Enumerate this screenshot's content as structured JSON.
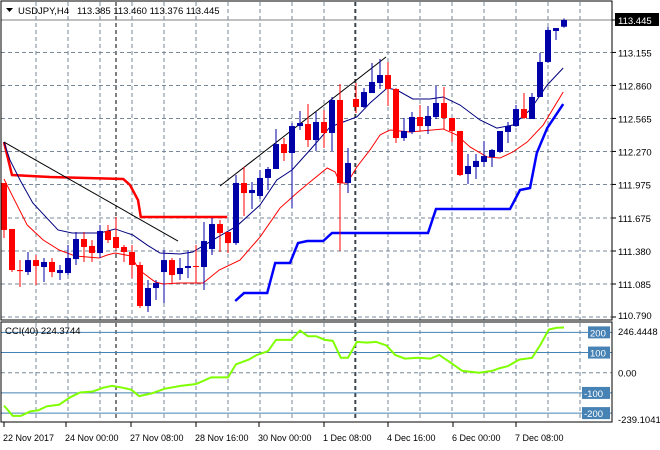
{
  "header": {
    "symbol": "USDJPY,H4",
    "ohlc": "113.385 113.460 113.376 113.445",
    "collapse_icon": "triangle-down-icon"
  },
  "colors": {
    "bull": "#0000a8",
    "bear": "#ff0000",
    "ma_slow": "#000080",
    "ma_fast": "#ff0000",
    "step_red": "#ff0000",
    "step_blue": "#0000ff",
    "trendline": "#000000",
    "cci": "#80ff00",
    "cci_levels": "#4682b4",
    "grid": "#778899"
  },
  "chart_data": [
    {
      "type": "candlestick",
      "title": "USDJPY,H4",
      "current_price": "113.445",
      "ylim": [
        110.79,
        113.445
      ],
      "price_ticks": [
        "113.445",
        "113.155",
        "112.860",
        "112.565",
        "112.270",
        "111.975",
        "111.675",
        "111.380",
        "111.085",
        "110.790"
      ],
      "x_labels": [
        "22 Nov 2017",
        "24 Nov 00:00",
        "27 Nov 08:00",
        "28 Nov 16:00",
        "30 Nov 00:00",
        "1 Dec 08:00",
        "4 Dec 16:00",
        "6 Dec 00:00",
        "7 Dec 08:00"
      ],
      "candles_ohlc": [
        [
          111.988,
          111.988,
          111.496,
          111.568
        ],
        [
          111.577,
          111.577,
          111.192,
          111.21
        ],
        [
          111.21,
          111.299,
          111.058,
          111.2
        ],
        [
          111.192,
          111.371,
          111.165,
          111.299
        ],
        [
          111.299,
          111.344,
          111.076,
          111.246
        ],
        [
          111.237,
          111.317,
          111.103,
          111.282
        ],
        [
          111.282,
          111.317,
          111.147,
          111.192
        ],
        [
          111.183,
          111.255,
          111.121,
          111.21
        ],
        [
          111.183,
          111.434,
          111.165,
          111.317
        ],
        [
          111.308,
          111.55,
          111.255,
          111.487
        ],
        [
          111.487,
          111.55,
          111.282,
          111.416
        ],
        [
          111.425,
          111.478,
          111.282,
          111.362
        ],
        [
          111.362,
          111.612,
          111.317,
          111.559
        ],
        [
          111.559,
          111.612,
          111.451,
          111.478
        ],
        [
          111.505,
          111.684,
          111.389,
          111.407
        ],
        [
          111.416,
          111.434,
          111.282,
          111.371
        ],
        [
          111.371,
          111.434,
          111.138,
          111.255
        ],
        [
          111.255,
          111.282,
          110.87,
          110.888
        ],
        [
          110.888,
          111.121,
          110.835,
          111.049
        ],
        [
          111.049,
          111.121,
          110.942,
          111.094
        ],
        [
          111.192,
          111.389,
          110.915,
          111.299
        ],
        [
          111.299,
          111.317,
          111.094,
          111.165
        ],
        [
          111.174,
          111.317,
          111.121,
          111.228
        ],
        [
          111.228,
          111.389,
          111.138,
          111.246
        ],
        [
          111.246,
          111.434,
          111.094,
          111.24
        ],
        [
          111.237,
          111.639,
          111.031,
          111.469
        ],
        [
          111.398,
          111.675,
          111.344,
          111.621
        ],
        [
          111.621,
          111.657,
          111.371,
          111.541
        ],
        [
          111.55,
          111.55,
          111.362,
          111.451
        ],
        [
          111.451,
          112.059,
          111.434,
          111.988
        ],
        [
          111.988,
          112.131,
          111.693,
          111.898
        ],
        [
          111.898,
          111.997,
          111.755,
          111.925
        ],
        [
          111.872,
          112.104,
          111.845,
          112.033
        ],
        [
          112.033,
          112.131,
          111.925,
          112.113
        ],
        [
          112.113,
          112.471,
          112.113,
          112.336
        ],
        [
          112.336,
          112.39,
          112.185,
          112.256
        ],
        [
          112.256,
          112.524,
          111.764,
          112.497
        ],
        [
          112.497,
          112.631,
          112.462,
          112.524
        ],
        [
          112.515,
          112.694,
          112.31,
          112.372
        ],
        [
          112.372,
          112.623,
          112.274,
          112.533
        ],
        [
          112.533,
          112.64,
          112.301,
          112.435
        ],
        [
          112.435,
          112.757,
          112.274,
          112.73
        ],
        [
          112.73,
          112.873,
          111.38,
          111.988
        ],
        [
          111.988,
          112.301,
          111.898,
          112.167
        ],
        [
          112.739,
          112.882,
          112.614,
          112.667
        ],
        [
          112.667,
          112.837,
          112.658,
          112.801
        ],
        [
          112.792,
          113.061,
          112.792,
          112.891
        ],
        [
          112.882,
          113.096,
          112.828,
          112.953
        ],
        [
          112.953,
          113.07,
          112.676,
          112.828
        ],
        [
          112.828,
          112.837,
          112.345,
          112.39
        ],
        [
          112.39,
          112.569,
          112.363,
          112.453
        ],
        [
          112.444,
          112.623,
          112.426,
          112.578
        ],
        [
          112.578,
          112.685,
          112.453,
          112.497
        ],
        [
          112.497,
          112.676,
          112.426,
          112.587
        ],
        [
          112.578,
          112.855,
          112.56,
          112.703
        ],
        [
          112.703,
          112.846,
          112.471,
          112.569
        ],
        [
          112.569,
          112.569,
          112.354,
          112.453
        ],
        [
          112.453,
          112.453,
          112.05,
          112.059
        ],
        [
          112.068,
          112.247,
          111.979,
          112.14
        ],
        [
          112.131,
          112.247,
          112.024,
          112.185
        ],
        [
          112.176,
          112.363,
          112.131,
          112.229
        ],
        [
          112.22,
          112.292,
          112.131,
          112.283
        ],
        [
          112.265,
          112.453,
          112.256,
          112.453
        ],
        [
          112.444,
          112.533,
          112.345,
          112.497
        ],
        [
          112.497,
          112.685,
          112.488,
          112.649
        ],
        [
          112.649,
          112.792,
          112.56,
          112.569
        ],
        [
          112.56,
          112.792,
          112.56,
          112.757
        ],
        [
          112.757,
          113.15,
          112.757,
          113.07
        ],
        [
          113.07,
          113.382,
          113.061,
          113.356
        ],
        [
          113.347,
          113.373,
          113.266,
          113.373
        ],
        [
          113.385,
          113.46,
          113.376,
          113.445
        ]
      ],
      "overlays": {
        "ma_slow": [
          [
            0,
            112.354
          ],
          [
            0.75,
            112.193
          ],
          [
            2,
            112.015
          ],
          [
            3.6,
            111.809
          ],
          [
            6.75,
            111.568
          ],
          [
            8.5,
            111.541
          ],
          [
            12,
            111.541
          ],
          [
            13.9,
            111.577
          ],
          [
            16.1,
            111.523
          ],
          [
            17.9,
            111.433
          ],
          [
            19.5,
            111.362
          ],
          [
            22,
            111.353
          ],
          [
            23.6,
            111.371
          ],
          [
            26.1,
            111.478
          ],
          [
            29.1,
            111.603
          ],
          [
            32,
            111.791
          ],
          [
            34.1,
            112.015
          ],
          [
            36,
            112.104
          ],
          [
            38.25,
            112.283
          ],
          [
            40.75,
            112.488
          ],
          [
            42.4,
            112.533
          ],
          [
            44.1,
            112.578
          ],
          [
            45.75,
            112.703
          ],
          [
            47.9,
            112.837
          ],
          [
            49.1,
            112.819
          ],
          [
            51.1,
            112.739
          ],
          [
            53.25,
            112.739
          ],
          [
            54.9,
            112.757
          ],
          [
            57,
            112.685
          ],
          [
            59.5,
            112.551
          ],
          [
            61.6,
            112.479
          ],
          [
            63.6,
            112.506
          ],
          [
            65.75,
            112.64
          ],
          [
            67.9,
            112.864
          ],
          [
            69.9,
            113.016
          ]
        ],
        "ma_fast": [
          [
            0,
            112.024
          ],
          [
            1,
            111.88
          ],
          [
            2.9,
            111.612
          ],
          [
            4.9,
            111.478
          ],
          [
            6.9,
            111.389
          ],
          [
            8.9,
            111.335
          ],
          [
            11.9,
            111.317
          ],
          [
            12.9,
            111.344
          ],
          [
            13.9,
            111.362
          ],
          [
            15.9,
            111.335
          ],
          [
            16.9,
            111.21
          ],
          [
            18.9,
            111.103
          ],
          [
            19.9,
            111.085
          ],
          [
            21.9,
            111.094
          ],
          [
            24.9,
            111.094
          ],
          [
            26.9,
            111.21
          ],
          [
            29.5,
            111.299
          ],
          [
            32,
            111.505
          ],
          [
            34.5,
            111.764
          ],
          [
            36.6,
            111.898
          ],
          [
            38.25,
            111.997
          ],
          [
            40.4,
            112.122
          ],
          [
            41.4,
            112.086
          ],
          [
            42,
            111.988
          ],
          [
            42.9,
            111.988
          ],
          [
            44.1,
            112.131
          ],
          [
            45.75,
            112.283
          ],
          [
            47,
            112.417
          ],
          [
            48.25,
            112.462
          ],
          [
            50.75,
            112.444
          ],
          [
            54.9,
            112.471
          ],
          [
            56.6,
            112.417
          ],
          [
            58.25,
            112.31
          ],
          [
            60.4,
            112.22
          ],
          [
            62,
            112.211
          ],
          [
            63.6,
            112.265
          ],
          [
            65.4,
            112.354
          ],
          [
            67.4,
            112.506
          ],
          [
            69.9,
            112.801
          ]
        ],
        "step_red": [
          [
            0,
            112.354
          ],
          [
            1,
            112.059
          ],
          [
            5.75,
            112.041
          ],
          [
            14.9,
            112.024
          ],
          [
            15.75,
            111.97
          ],
          [
            16.75,
            111.836
          ],
          [
            17.1,
            111.684
          ],
          [
            27.9,
            111.684
          ]
        ],
        "step_blue": [
          [
            28.9,
            110.933
          ],
          [
            30,
            111.004
          ],
          [
            32.9,
            111.004
          ],
          [
            33.9,
            111.273
          ],
          [
            35.75,
            111.273
          ],
          [
            36.75,
            111.451
          ],
          [
            37.9,
            111.469
          ],
          [
            39.9,
            111.469
          ],
          [
            41,
            111.541
          ],
          [
            53,
            111.541
          ],
          [
            54,
            111.755
          ],
          [
            63.25,
            111.755
          ],
          [
            64.5,
            111.925
          ],
          [
            65.75,
            111.943
          ],
          [
            66.6,
            112.256
          ],
          [
            67.9,
            112.479
          ],
          [
            69.9,
            112.694
          ]
        ],
        "trendlines": [
          [
            [
              0,
              112.354
            ],
            [
              21.75,
              111.469
            ]
          ],
          [
            [
              27,
              111.961
            ],
            [
              47.75,
              113.114
            ]
          ]
        ]
      }
    },
    {
      "type": "line",
      "title": "CCI(40) 224.3744",
      "label": "CCI(40)",
      "current_value": "224.3744",
      "ylim": [
        -239.1041,
        246.4448
      ],
      "max_label": "246.4448",
      "min_label": "-239.1041",
      "levels": [
        "200",
        "100",
        "-100",
        "-200"
      ],
      "zero_label": "0.00",
      "points": [
        [
          0,
          -163
        ],
        [
          1.1,
          -214
        ],
        [
          2.1,
          -214
        ],
        [
          3.3,
          -191
        ],
        [
          4.3,
          -186
        ],
        [
          5.3,
          -167
        ],
        [
          6.9,
          -158
        ],
        [
          8.3,
          -121
        ],
        [
          9.5,
          -98
        ],
        [
          11.1,
          -93
        ],
        [
          12.4,
          -74
        ],
        [
          13.5,
          -65
        ],
        [
          14.8,
          -74
        ],
        [
          15.9,
          -84
        ],
        [
          16.9,
          -116
        ],
        [
          18.5,
          -102
        ],
        [
          20.1,
          -79
        ],
        [
          22.1,
          -65
        ],
        [
          24,
          -56
        ],
        [
          25.9,
          -23
        ],
        [
          28,
          -23
        ],
        [
          29,
          42
        ],
        [
          30.6,
          65
        ],
        [
          31.6,
          88
        ],
        [
          33,
          107
        ],
        [
          34,
          163
        ],
        [
          35.9,
          163
        ],
        [
          37,
          209
        ],
        [
          38,
          181
        ],
        [
          39,
          181
        ],
        [
          40.1,
          163
        ],
        [
          41.1,
          158
        ],
        [
          42.1,
          74
        ],
        [
          43,
          74
        ],
        [
          44.1,
          153
        ],
        [
          45.4,
          149
        ],
        [
          46.5,
          153
        ],
        [
          47.8,
          135
        ],
        [
          48.9,
          88
        ],
        [
          50.1,
          70
        ],
        [
          51.8,
          74
        ],
        [
          53.3,
          70
        ],
        [
          54.4,
          88
        ],
        [
          55.6,
          56
        ],
        [
          57.3,
          9
        ],
        [
          59.4,
          0
        ],
        [
          61,
          9
        ],
        [
          62,
          23
        ],
        [
          63,
          33
        ],
        [
          64.4,
          65
        ],
        [
          66,
          74
        ],
        [
          67,
          135
        ],
        [
          68.1,
          214
        ],
        [
          69.1,
          223
        ],
        [
          70,
          224
        ]
      ]
    }
  ]
}
